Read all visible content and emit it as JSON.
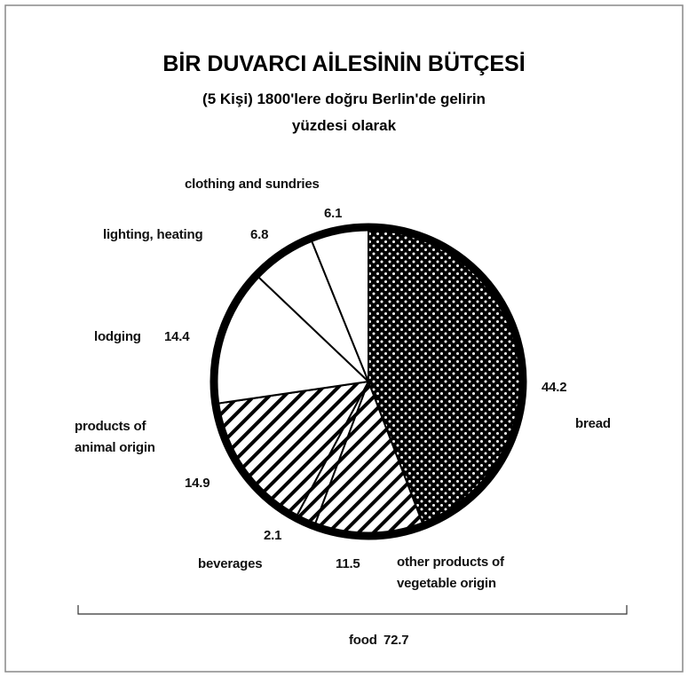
{
  "chart_data": {
    "type": "pie",
    "title": "BİR DUVARCI AİLESİNİN BÜTÇESİ",
    "subtitle": [
      "(5 Kişi)  1800'lere doğru Berlin'de gelirin",
      "yüzdesi olarak"
    ],
    "categories": [
      "bread",
      "other products of vegetable origin",
      "beverages",
      "products of animal origin",
      "lodging",
      "lighting, heating",
      "clothing and sundries"
    ],
    "values": [
      44.2,
      11.5,
      2.1,
      14.9,
      14.4,
      6.8,
      6.1
    ],
    "patterns": [
      "dots",
      "stripes",
      "stripes",
      "stripes",
      "none",
      "none",
      "none"
    ],
    "color": "#000000",
    "annotation": {
      "text": "food",
      "value": 72.7
    }
  }
}
